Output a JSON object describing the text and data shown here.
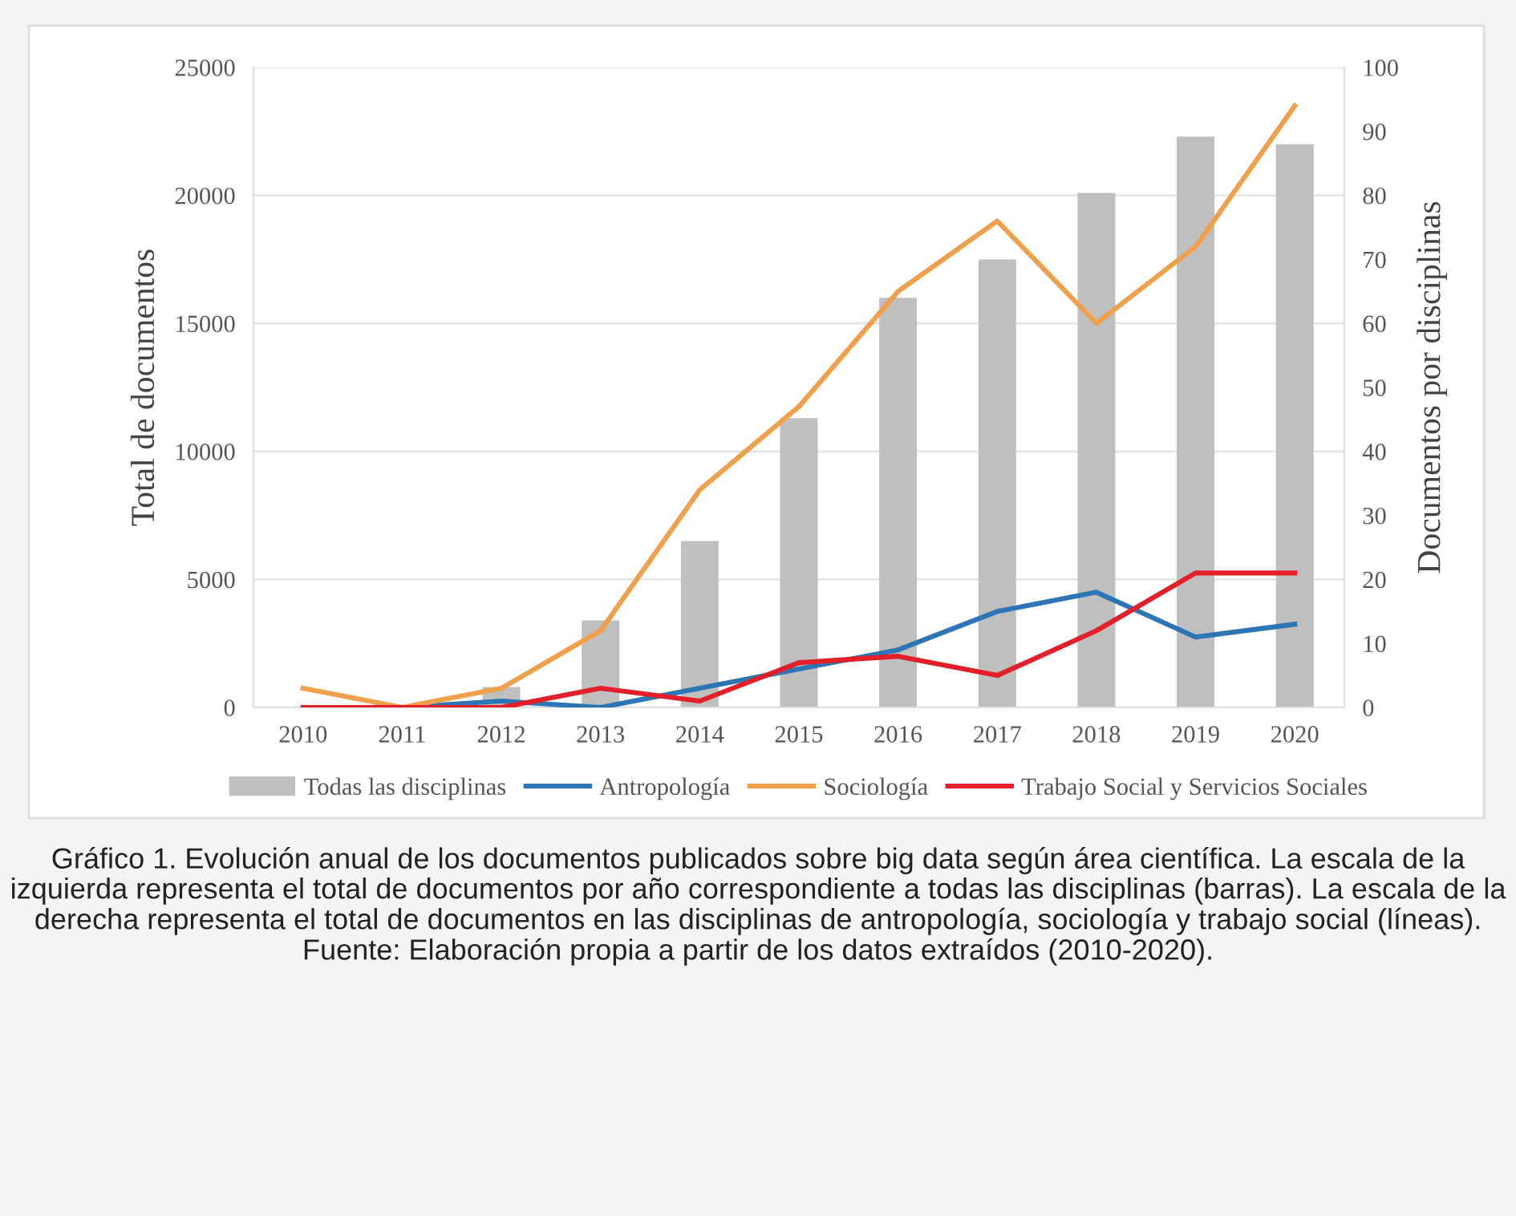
{
  "chart_data": {
    "type": "bar",
    "categories": [
      "2010",
      "2011",
      "2012",
      "2013",
      "2014",
      "2015",
      "2016",
      "2017",
      "2018",
      "2019",
      "2020"
    ],
    "ylabel": "Total de documentos",
    "y2label": "Documentos por disciplinas",
    "series": [
      {
        "name": "Todas las disciplinas",
        "color": "#bfbfbf",
        "values": [
          0,
          0,
          800,
          3400,
          6500,
          11300,
          16000,
          17500,
          20100,
          22300,
          22000
        ]
      },
      {
        "name": "Antropología",
        "type": "line",
        "axis": "y2",
        "color": "#2e75b6",
        "values": [
          0,
          0,
          1,
          0,
          3,
          6,
          9,
          15,
          18,
          11,
          13
        ]
      },
      {
        "name": "Sociología",
        "type": "line",
        "axis": "y2",
        "color": "#f0a04b",
        "values": [
          3,
          0,
          3,
          12,
          34,
          47,
          65,
          76,
          60,
          72,
          94
        ]
      },
      {
        "name": "Trabajo Social y Servicios Sociales",
        "type": "line",
        "axis": "y2",
        "color": "#e3202a",
        "values": [
          0,
          0,
          0,
          3,
          1,
          7,
          8,
          5,
          12,
          21,
          21
        ]
      }
    ],
    "ylim": [
      0,
      25000
    ],
    "yticks": [
      0,
      5000,
      10000,
      15000,
      20000,
      25000
    ],
    "y2lim": [
      0,
      100
    ],
    "y2ticks": [
      0,
      10,
      20,
      30,
      40,
      50,
      60,
      70,
      80,
      90,
      100
    ],
    "grid": "y",
    "legend": "bottom",
    "marker": "none",
    "line_style": "solid",
    "annotations": [
      "Gráfico 1. Evolución anual de los documentos publicados sobre big data según área científica. La escala de la izquierda representa el total de documentos por año correspondiente a todas las disciplinas (barras). La escala de la derecha representa el total de documentos en las disciplinas de antropología, sociología y trabajo social (líneas). Fuente: Elaboración propia a partir de los datos extraídos (2010-2020)."
    ]
  }
}
